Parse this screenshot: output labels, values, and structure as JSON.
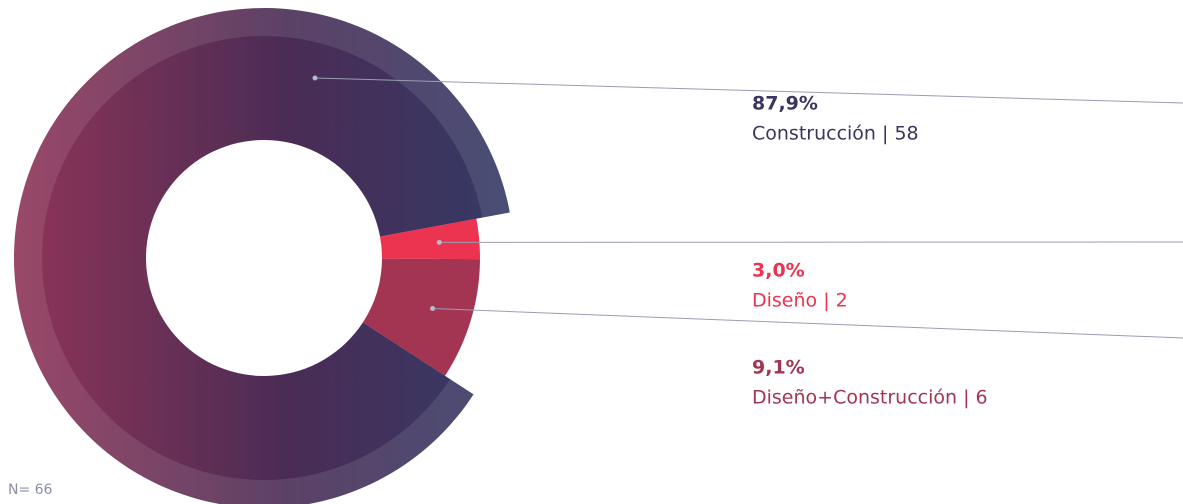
{
  "chart_data": {
    "type": "donut",
    "categories": [
      "Construcción | 58",
      "Diseño | 2",
      "Diseño+Construcción | 6"
    ],
    "values": [
      87.9,
      3.0,
      9.1
    ],
    "value_labels": [
      "87,9%",
      "3,0%",
      "9,1%"
    ],
    "colors": [
      "#3a3560",
      "#ec3350",
      "#a33552"
    ],
    "note": "N= 66"
  }
}
